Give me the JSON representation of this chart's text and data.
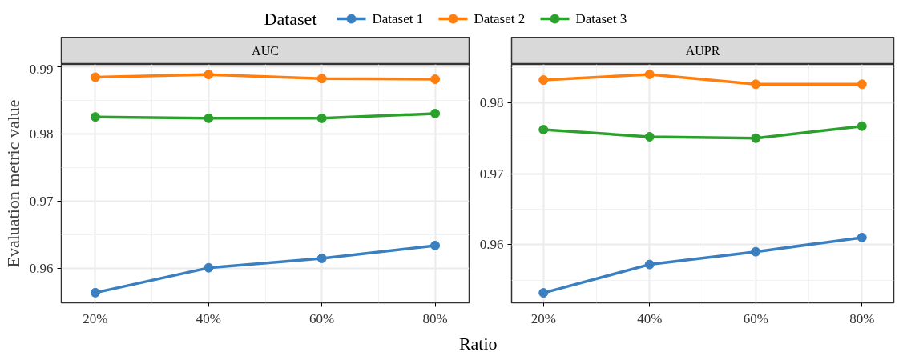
{
  "chart_data": [
    {
      "type": "line",
      "title": "AUC",
      "xlabel": "Ratio",
      "ylabel": "Evaluation metric value",
      "legend_title": "Dataset",
      "legend": "top",
      "marker": "circle",
      "grid": true,
      "categories": [
        "20%",
        "40%",
        "60%",
        "80%"
      ],
      "ylim": [
        0.9549,
        0.9903
      ],
      "yticks": [
        0.96,
        0.97,
        0.98,
        0.99
      ],
      "series": [
        {
          "name": "Dataset 1",
          "color": "#3a7fbf",
          "values": [
            0.9564,
            0.9601,
            0.9615,
            0.9634
          ]
        },
        {
          "name": "Dataset 2",
          "color": "#ff7f0e",
          "values": [
            0.9884,
            0.9888,
            0.9882,
            0.9881
          ]
        },
        {
          "name": "Dataset 3",
          "color": "#2ca02c",
          "values": [
            0.9825,
            0.9823,
            0.9823,
            0.983
          ]
        }
      ]
    },
    {
      "type": "line",
      "title": "AUPR",
      "marker": "circle",
      "grid": true,
      "categories": [
        "20%",
        "40%",
        "60%",
        "80%"
      ],
      "ylim": [
        0.9518,
        0.9854
      ],
      "yticks": [
        0.96,
        0.97,
        0.98
      ],
      "series": [
        {
          "color": "#3a7fbf",
          "values": [
            0.9532,
            0.9572,
            0.959,
            0.961
          ]
        },
        {
          "color": "#ff7f0e",
          "values": [
            0.9832,
            0.984,
            0.9826,
            0.9826
          ]
        },
        {
          "color": "#2ca02c",
          "values": [
            0.9762,
            0.9752,
            0.975,
            0.9767
          ]
        }
      ]
    }
  ]
}
